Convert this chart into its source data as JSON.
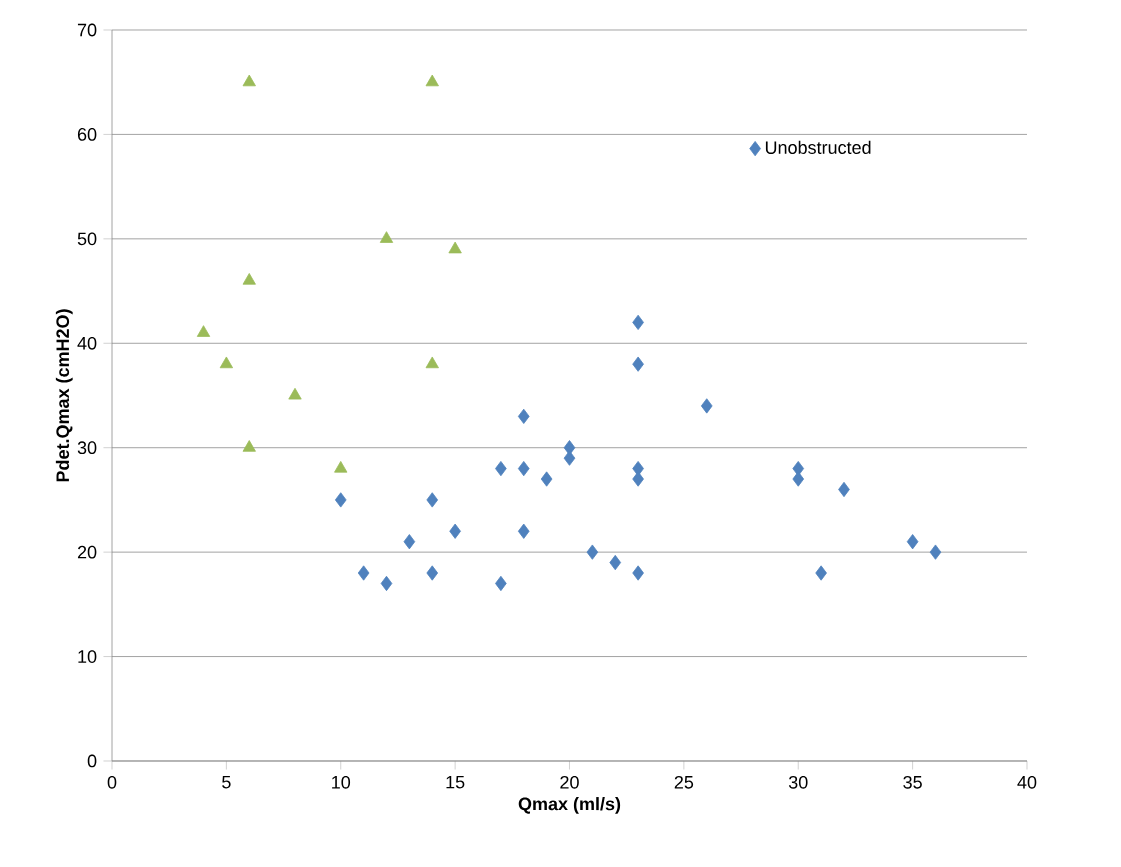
{
  "chart_data": {
    "type": "scatter",
    "xlabel": "Qmax (ml/s)",
    "ylabel": "Pdet.Qmax (cmH2O)",
    "series": [
      {
        "name": "Unobstructed",
        "color": "#4f81bd",
        "marker": "diamond",
        "x": [
          10,
          11,
          12,
          13,
          14,
          14,
          15,
          17,
          17,
          18,
          18,
          18,
          19,
          20,
          20,
          21,
          22,
          23,
          23,
          23,
          23,
          23,
          26,
          30,
          30,
          31,
          32,
          35,
          36
        ],
        "values": [
          25,
          18,
          17,
          21,
          25,
          18,
          22,
          28,
          17,
          33,
          28,
          22,
          27,
          30,
          29,
          20,
          19,
          42,
          38,
          28,
          27,
          18,
          34,
          28,
          27,
          18,
          26,
          21,
          20
        ]
      },
      {
        "color": "#9bbb59",
        "marker": "triangle",
        "x": [
          6,
          14,
          12,
          15,
          6,
          4,
          5,
          14,
          8,
          6,
          10
        ],
        "values": [
          65,
          65,
          50,
          49,
          46,
          41,
          38,
          38,
          35,
          30,
          28
        ]
      }
    ],
    "xlim": [
      0,
      40
    ],
    "ylim": [
      0,
      70
    ],
    "xticks": [
      0,
      5,
      10,
      15,
      20,
      25,
      30,
      35,
      40
    ],
    "yticks": [
      0,
      10,
      20,
      30,
      40,
      50,
      60,
      70
    ],
    "grid": "y",
    "legend": "top right"
  }
}
